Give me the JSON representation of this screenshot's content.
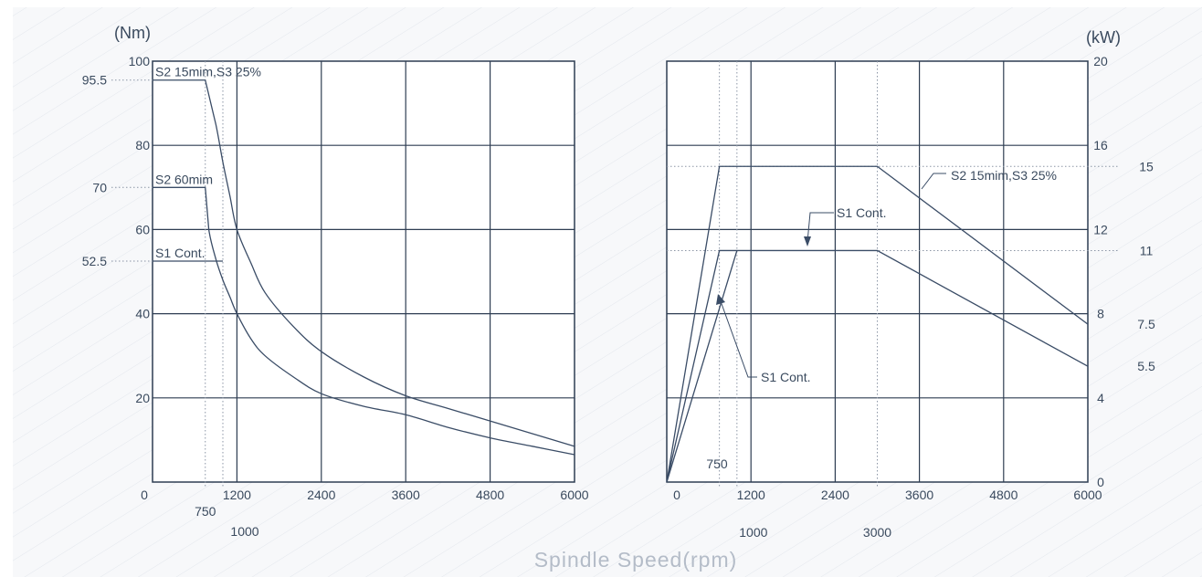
{
  "colors": {
    "axis": "#2e3d52",
    "grid": "#2e3d52",
    "curve": "#3a4c66",
    "text": "#3a4a5e",
    "hatch": "#e2e6ec",
    "background_panel": "#f6f7f9",
    "dotted_ref": "#8b95a5"
  },
  "x_label": "Spindle Speed(rpm)",
  "chart_data": [
    {
      "type": "line",
      "id": "torque",
      "ylabel": "(Nm)",
      "xlim": [
        0,
        6000
      ],
      "ylim": [
        0,
        100
      ],
      "x_ticks": [
        "0",
        "1200",
        "2400",
        "3600",
        "4800",
        "6000"
      ],
      "x_tick_values": [
        0,
        1200,
        2400,
        3600,
        4800,
        6000
      ],
      "y_ticks": [
        "20",
        "40",
        "60",
        "80",
        "100"
      ],
      "y_tick_values": [
        20,
        40,
        60,
        80,
        100
      ],
      "grid": true,
      "extra_x_labels": [
        {
          "text": "750",
          "x": 750
        },
        {
          "text": "1000",
          "x": 1000
        }
      ],
      "reference_lines": [
        {
          "label": "95.5",
          "y": 95.5
        },
        {
          "label": "70",
          "y": 70
        },
        {
          "label": "52.5",
          "y": 52.5
        }
      ],
      "series": [
        {
          "name": "S2 15mim,S3 25%",
          "x": [
            0,
            750,
            900,
            1000,
            1100,
            1200,
            1400,
            1600,
            2000,
            2400,
            3000,
            3600,
            4200,
            4800,
            5400,
            6000
          ],
          "y": [
            95.5,
            95.5,
            85,
            76,
            68,
            60,
            52,
            45,
            37,
            31,
            25,
            20.5,
            17.5,
            14.5,
            11.5,
            8.5
          ]
        },
        {
          "name": "S2 60mim",
          "x": [
            0,
            750,
            800,
            900,
            1000,
            1100,
            1200,
            1400,
            1600,
            2000,
            2400,
            3000,
            3600,
            4200,
            4800,
            5400,
            6000
          ],
          "y": [
            70,
            70,
            60,
            53,
            48,
            44,
            40,
            34,
            30,
            25,
            21,
            18,
            16,
            13,
            10.5,
            8.5,
            6.5
          ]
        },
        {
          "name": "S1 Cont.",
          "x": [
            0,
            1000
          ],
          "y": [
            52.5,
            52.5
          ]
        }
      ]
    },
    {
      "type": "line",
      "id": "power",
      "ylabel": "(kW)",
      "xlim": [
        0,
        6000
      ],
      "ylim": [
        0,
        20
      ],
      "x_ticks": [
        "0",
        "1200",
        "2400",
        "3600",
        "4800",
        "6000"
      ],
      "x_tick_values": [
        0,
        1200,
        2400,
        3600,
        4800,
        6000
      ],
      "y_ticks": [
        "0",
        "4",
        "8",
        "12",
        "16",
        "20"
      ],
      "y_tick_values": [
        0,
        4,
        8,
        12,
        16,
        20
      ],
      "grid": true,
      "extra_x_labels": [
        {
          "text": "750",
          "x": 750
        },
        {
          "text": "1000",
          "x": 1000
        },
        {
          "text": "3000",
          "x": 3000
        }
      ],
      "reference_lines": [
        {
          "label": "15",
          "y": 15
        },
        {
          "label": "11",
          "y": 11
        },
        {
          "label": "7.5",
          "y": 7.5
        },
        {
          "label": "5.5",
          "y": 5.5
        }
      ],
      "series": [
        {
          "name": "S2 15mim,S3 25%",
          "x": [
            0,
            750,
            3000,
            6000
          ],
          "y": [
            0,
            15,
            15,
            7.5
          ]
        },
        {
          "name": "S1 Cont.",
          "x": [
            0,
            750,
            3000,
            6000
          ],
          "y": [
            0,
            11,
            11,
            5.5
          ]
        },
        {
          "name": "S1 Cont.",
          "x": [
            0,
            1000
          ],
          "y": [
            0,
            11
          ]
        }
      ],
      "annotations": [
        {
          "text": "S2 15mim,S3 25%"
        },
        {
          "text": "S1 Cont."
        },
        {
          "text": "S1 Cont."
        }
      ]
    }
  ]
}
